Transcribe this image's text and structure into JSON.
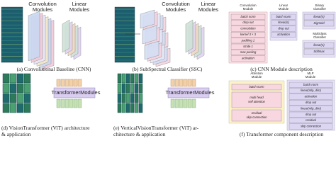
{
  "panels": [
    {
      "labels": [
        [
          "Convolution",
          "Modules"
        ],
        [
          "Linear",
          "Modules"
        ]
      ],
      "caption": [
        "(a) Convolutional Baseline (CNN)"
      ]
    },
    {
      "labels": [
        [
          "Convolution",
          "Modules"
        ],
        [
          "Linear",
          "Modules"
        ]
      ],
      "caption": [
        "(b) SubSpectral Classifier (SSC)"
      ]
    },
    {
      "headers": [
        [
          "Convolution",
          "Module"
        ],
        [
          "Linear",
          "Module"
        ],
        [
          "Binary",
          "Classifier"
        ],
        [
          "Multiclass",
          "Classifier"
        ]
      ],
      "conv": [
        "batch norm",
        "drop out",
        "convolution",
        "kernel 3 × 3",
        "padding 1",
        "stride 1",
        "max pooling",
        "activation"
      ],
      "linear": [
        "batch norm",
        "linear(n)",
        "drop out",
        "activation"
      ],
      "binary": [
        "linear(n)",
        "Sigmoid"
      ],
      "multiclass": [
        "linear(n)",
        "Softmax"
      ],
      "caption": [
        "(c) CNN Module description"
      ]
    },
    {
      "labels": [
        "TransformerModules"
      ],
      "caption": [
        "(d) VisionTransformer (ViT) architecture",
        "& application"
      ]
    },
    {
      "labels": [
        "TransformerModules"
      ],
      "caption": [
        "(e) VerticalVisionTransformer (ViT) ar-",
        "chitecture & application"
      ]
    },
    {
      "headers": [
        [
          "Attention",
          "Module"
        ],
        [
          "MLP",
          "Module"
        ]
      ],
      "attention": [
        "batch norm",
        "multi head",
        "self attention",
        "residual",
        "skip connection"
      ],
      "mlp": [
        "batch norm",
        "linear(mlp_dim)",
        "activation",
        "drop out",
        "linear(mlp_dim)",
        "drop out",
        "residual",
        "skip connection"
      ],
      "caption": [
        "(f) Transformer component description"
      ]
    }
  ]
}
